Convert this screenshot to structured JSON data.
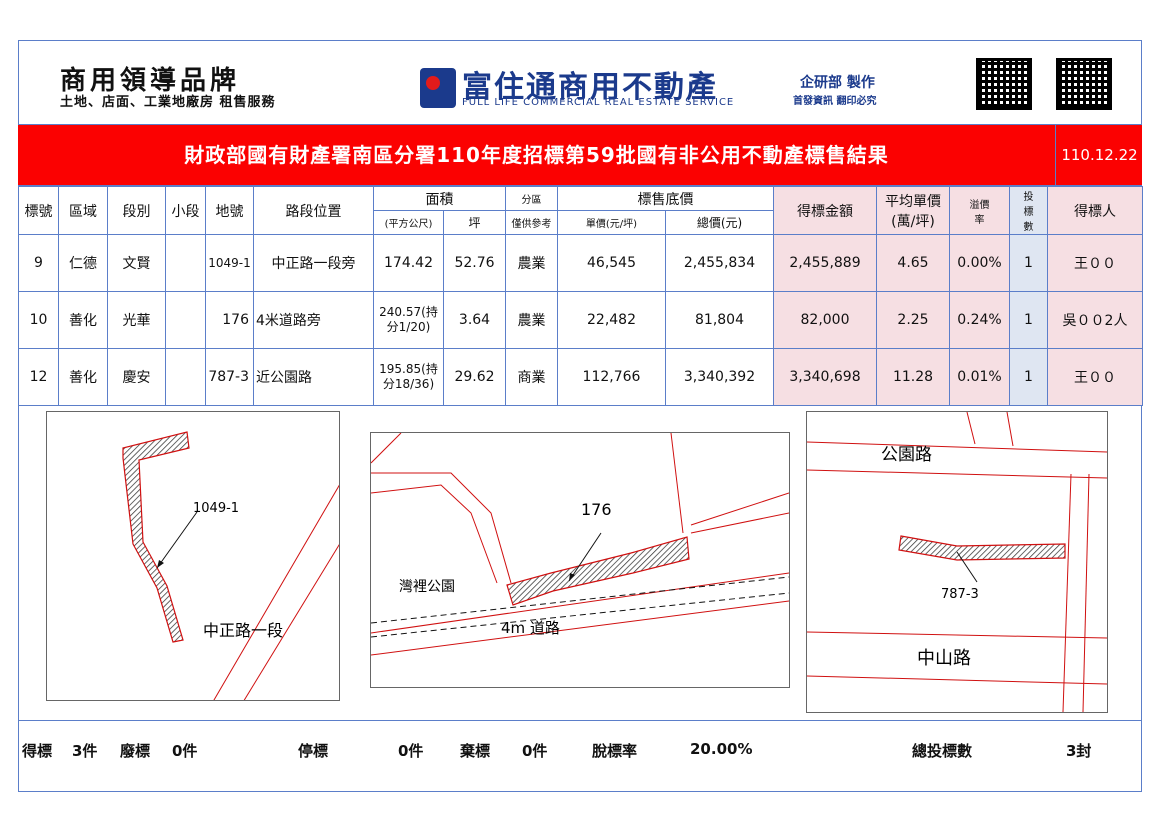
{
  "header": {
    "brand_title": "商用領導品牌",
    "brand_sub": "土地、店面、工業地廠房 租售服務",
    "company": "富住通商用不動產",
    "company_en": "FULL LIFE COMMERCIAL REAL ESTATE SERVICE",
    "dept": "企研部 製作",
    "dept_sub": "首發資訊 翻印必究"
  },
  "banner": {
    "title": "財政部國有財產署南區分署110年度招標第59批國有非公用不動產標售結果",
    "date": "110.12.22"
  },
  "table": {
    "headers": {
      "no": "標號",
      "district": "區域",
      "section": "段別",
      "subsection": "小段",
      "lot": "地號",
      "location": "路段位置",
      "area": "面積",
      "area_m2": "(平方公尺)",
      "area_ping": "坪",
      "zone": "分區",
      "zone_note": "僅供參考",
      "base_price": "標售底價",
      "unit_price": "單價(元/坪)",
      "total_price": "總價(元)",
      "winning_amount": "得標金額",
      "avg_unit": "平均單價",
      "avg_unit_unit": "(萬/坪)",
      "premium": "溢價率",
      "bids": "投標數",
      "winner": "得標人"
    },
    "rows": [
      {
        "no": "9",
        "district": "仁德",
        "section": "文賢",
        "subsection": "",
        "lot": "1049-1",
        "location": "中正路一段旁",
        "area_m2": "174.42",
        "area_ping": "52.76",
        "zone": "農業",
        "unit_price": "46,545",
        "total_price": "2,455,834",
        "winning_amount": "2,455,889",
        "avg_unit": "4.65",
        "premium": "0.00%",
        "bids": "1",
        "winner": "王００"
      },
      {
        "no": "10",
        "district": "善化",
        "section": "光華",
        "subsection": "",
        "lot": "176",
        "location": "4米道路旁",
        "area_m2": "240.57(持分1/20)",
        "area_ping": "3.64",
        "zone": "農業",
        "unit_price": "22,482",
        "total_price": "81,804",
        "winning_amount": "82,000",
        "avg_unit": "2.25",
        "premium": "0.24%",
        "bids": "1",
        "winner": "吳００2人"
      },
      {
        "no": "12",
        "district": "善化",
        "section": "慶安",
        "subsection": "",
        "lot": "787-3",
        "location": "近公園路",
        "area_m2": "195.85(持分18/36)",
        "area_ping": "29.62",
        "zone": "商業",
        "unit_price": "112,766",
        "total_price": "3,340,392",
        "winning_amount": "3,340,698",
        "avg_unit": "11.28",
        "premium": "0.01%",
        "bids": "1",
        "winner": "王００"
      }
    ]
  },
  "maps": {
    "map1": {
      "lot": "1049-1",
      "road": "中正路一段"
    },
    "map2": {
      "lot": "176",
      "park": "灣裡公園",
      "road": "4m 道路"
    },
    "map3": {
      "lot": "787-3",
      "road_top": "公園路",
      "road_bottom": "中山路"
    }
  },
  "footer": {
    "won_label": "得標",
    "won_value": "3件",
    "void_label": "廢標",
    "void_value": "0件",
    "stop_label": "停標",
    "stop_value": "0件",
    "abandon_label": "棄標",
    "abandon_value": "0件",
    "fail_rate_label": "脫標率",
    "fail_rate_value": "20.00%",
    "total_bids_label": "總投標數",
    "total_bids_value": "3封"
  }
}
